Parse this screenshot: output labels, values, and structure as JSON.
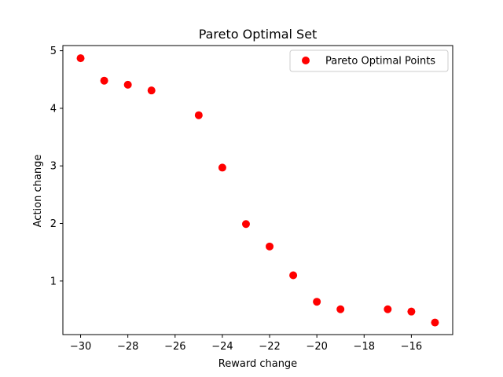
{
  "chart_data": {
    "type": "scatter",
    "title": "Pareto Optimal Set",
    "xlabel": "Reward change",
    "ylabel": "Action change",
    "xlim": [
      -30.75,
      -14.25
    ],
    "ylim": [
      0.07,
      5.09
    ],
    "xticks": [
      -30,
      -28,
      -26,
      -24,
      -22,
      -20,
      -18,
      -16
    ],
    "xtick_labels": [
      "−30",
      "−28",
      "−26",
      "−24",
      "−22",
      "−20",
      "−18",
      "−16"
    ],
    "yticks": [
      1,
      2,
      3,
      4,
      5
    ],
    "ytick_labels": [
      "1",
      "2",
      "3",
      "4",
      "5"
    ],
    "grid": false,
    "legend_position": "top-right",
    "series": [
      {
        "name": "Pareto Optimal Points",
        "color": "#ff0000",
        "marker": "circle",
        "points": [
          {
            "x": -30,
            "y": 4.87
          },
          {
            "x": -29,
            "y": 4.48
          },
          {
            "x": -28,
            "y": 4.41
          },
          {
            "x": -27,
            "y": 4.31
          },
          {
            "x": -25,
            "y": 3.88
          },
          {
            "x": -24,
            "y": 2.97
          },
          {
            "x": -23,
            "y": 1.99
          },
          {
            "x": -22,
            "y": 1.6
          },
          {
            "x": -21,
            "y": 1.1
          },
          {
            "x": -20,
            "y": 0.64
          },
          {
            "x": -19,
            "y": 0.51
          },
          {
            "x": -17,
            "y": 0.51
          },
          {
            "x": -16,
            "y": 0.47
          },
          {
            "x": -15,
            "y": 0.28
          }
        ]
      }
    ]
  }
}
